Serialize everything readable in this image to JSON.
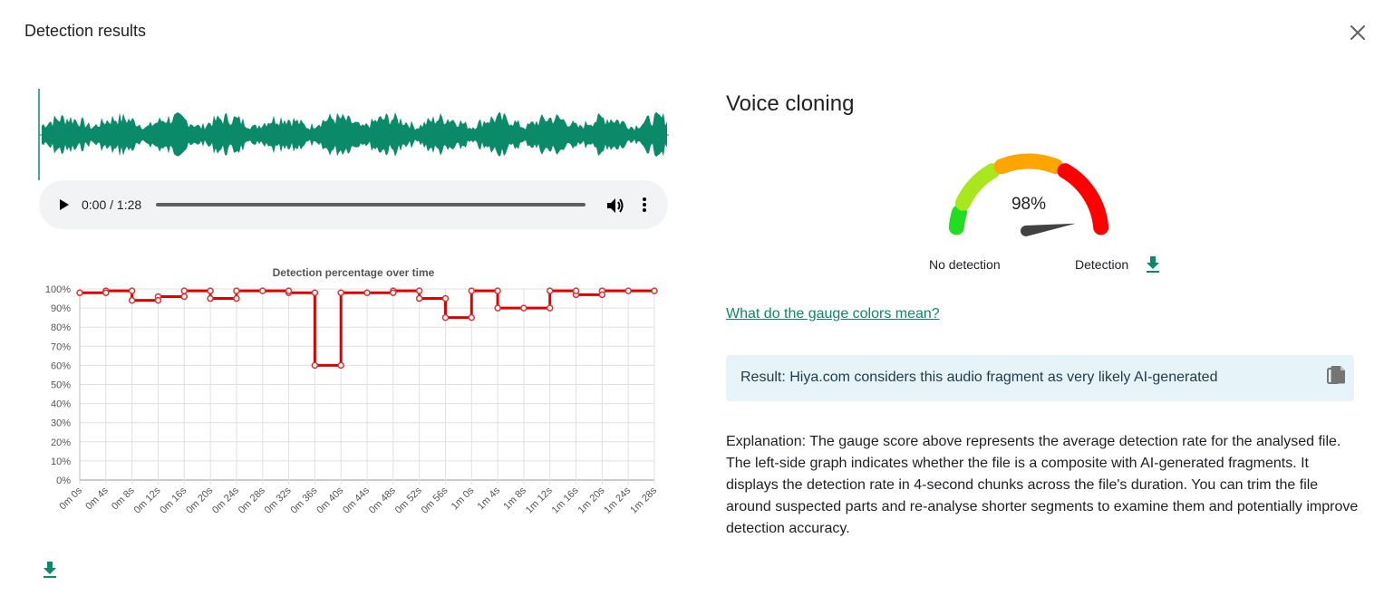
{
  "dialog": {
    "title": "Detection results"
  },
  "audio": {
    "time": "0:00 / 1:28"
  },
  "result_panel": {
    "title": "Voice cloning",
    "gauge": {
      "value_text": "98%",
      "value": 98,
      "label_left": "No detection",
      "label_right": "Detection",
      "colors": [
        "#22dd22",
        "#a8e61d",
        "#ffa500",
        "#ff0000"
      ]
    },
    "link_text": "What do the gauge colors mean?",
    "result_text": "Result: Hiya.com considers this audio fragment as very likely AI-generated",
    "explanation": "Explanation: The gauge score above represents the average detection rate for the analysed file. The left-side graph indicates whether the file is a composite with AI-generated fragments. It displays the detection rate in 4-second chunks across the file's duration. You can trim the file around suspected parts and re-analyse shorter segments to examine them and potentially improve detection accuracy."
  },
  "colors": {
    "accent": "#0b8a6a",
    "waveform": "#0b8a6a",
    "line": "#dd0000"
  },
  "chart_data": {
    "type": "line",
    "title": "Detection percentage over time",
    "xlabel": "",
    "ylabel": "",
    "categories": [
      "0m 0s",
      "0m 4s",
      "0m 8s",
      "0m 12s",
      "0m 16s",
      "0m 20s",
      "0m 24s",
      "0m 28s",
      "0m 32s",
      "0m 36s",
      "0m 40s",
      "0m 44s",
      "0m 48s",
      "0m 52s",
      "0m 56s",
      "1m 0s",
      "1m 4s",
      "1m 8s",
      "1m 12s",
      "1m 16s",
      "1m 20s",
      "1m 24s",
      "1m 28s"
    ],
    "values": [
      98,
      99,
      94,
      96,
      99,
      95,
      99,
      99,
      98,
      60,
      98,
      98,
      99,
      95,
      85,
      99,
      90,
      90,
      99,
      97,
      99,
      99,
      99
    ],
    "y_ticks": [
      "0%",
      "10%",
      "20%",
      "30%",
      "40%",
      "50%",
      "60%",
      "70%",
      "80%",
      "90%",
      "100%"
    ],
    "ylim": [
      0,
      100
    ],
    "step": true,
    "grid": true
  }
}
